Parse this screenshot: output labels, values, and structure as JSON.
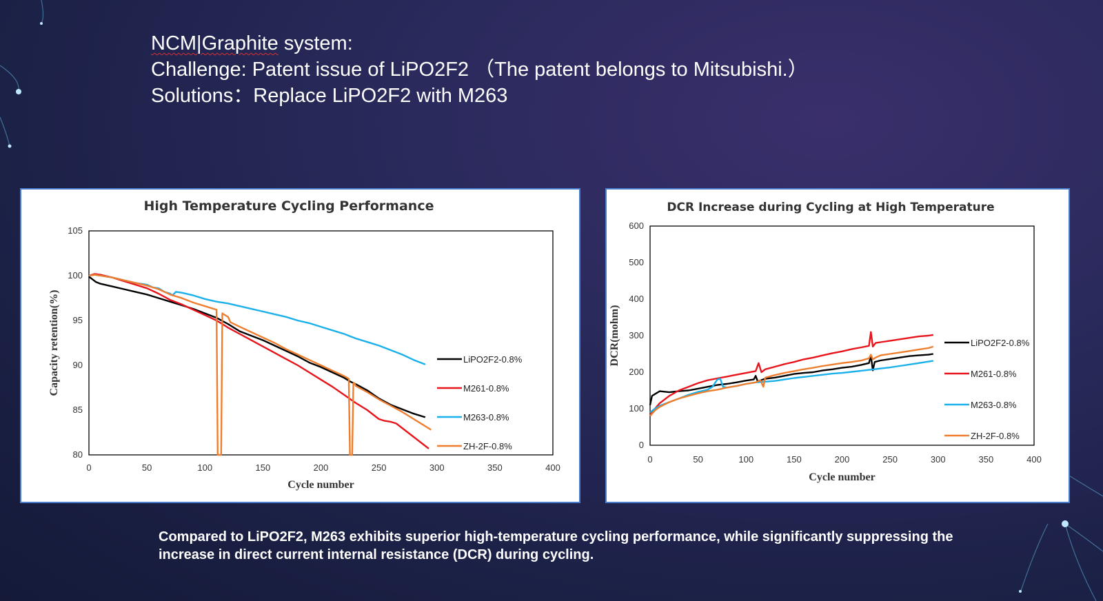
{
  "heading": {
    "line1_a": "NCM|Graphite",
    "line1_b": " system:",
    "line2": "Challenge: Patent issue of LiPO2F2 （The patent belongs to Mitsubishi.）",
    "line3": "Solutions：Replace LiPO2F2 with M263"
  },
  "caption": {
    "text": "Compared to LiPO2F2, M263 exhibits superior high-temperature cycling performance, while significantly suppressing the increase in direct current internal resistance (DCR) during cycling."
  },
  "colors": {
    "LiPO2F2-0.8%": "#000000",
    "M261-0.8%": "#e8141b",
    "M263-0.8%": "#1ab0ea",
    "ZH-2F-0.8%": "#ee7e2e",
    "panel_border": "#4a7fd0"
  },
  "chart_data": [
    {
      "type": "line",
      "title": "High Temperature Cycling Performance",
      "xlabel": "Cycle number",
      "ylabel": "Capacity retention(%)",
      "xlim": [
        0,
        400
      ],
      "ylim": [
        80,
        105
      ],
      "xticks": [
        0,
        50,
        100,
        150,
        200,
        250,
        300,
        350,
        400
      ],
      "yticks": [
        80,
        85,
        90,
        95,
        100,
        105
      ],
      "grid": false,
      "legend_position": "right",
      "series": [
        {
          "name": "LiPO2F2-0.8%",
          "x": [
            0,
            3,
            6,
            10,
            20,
            30,
            40,
            50,
            60,
            70,
            80,
            90,
            100,
            110,
            120,
            130,
            140,
            150,
            160,
            170,
            180,
            190,
            200,
            210,
            220,
            225,
            230,
            240,
            250,
            260,
            270,
            280,
            290
          ],
          "y": [
            99.9,
            99.6,
            99.3,
            99.1,
            98.8,
            98.5,
            98.2,
            97.9,
            97.5,
            97.1,
            96.7,
            96.3,
            95.8,
            95.3,
            94.6,
            93.8,
            93.3,
            92.8,
            92.2,
            91.6,
            91.0,
            90.3,
            89.8,
            89.2,
            88.6,
            88.2,
            87.9,
            87.2,
            86.3,
            85.6,
            85.1,
            84.6,
            84.2
          ]
        },
        {
          "name": "M261-0.8%",
          "x": [
            0,
            5,
            10,
            20,
            30,
            40,
            50,
            60,
            70,
            80,
            90,
            100,
            110,
            120,
            130,
            140,
            150,
            160,
            170,
            180,
            190,
            200,
            210,
            220,
            230,
            240,
            250,
            255,
            260,
            265,
            270,
            280,
            290,
            293
          ],
          "y": [
            100.0,
            100.2,
            100.1,
            99.8,
            99.4,
            99.0,
            98.6,
            98.0,
            97.3,
            96.8,
            96.2,
            95.6,
            95.0,
            94.2,
            93.5,
            92.8,
            92.1,
            91.4,
            90.7,
            90.0,
            89.2,
            88.4,
            87.6,
            86.7,
            85.8,
            85.0,
            84.0,
            83.8,
            83.7,
            83.5,
            83.0,
            82.0,
            81.0,
            80.7
          ]
        },
        {
          "name": "M263-0.8%",
          "x": [
            0,
            5,
            10,
            20,
            30,
            40,
            50,
            55,
            60,
            65,
            70,
            72,
            75,
            80,
            90,
            100,
            110,
            120,
            130,
            140,
            150,
            160,
            170,
            180,
            190,
            200,
            210,
            220,
            230,
            240,
            250,
            260,
            270,
            280,
            290
          ],
          "y": [
            100.0,
            100.1,
            100.0,
            99.8,
            99.5,
            99.2,
            99.0,
            98.7,
            98.6,
            98.2,
            98.0,
            97.8,
            98.2,
            98.1,
            97.8,
            97.4,
            97.1,
            96.9,
            96.6,
            96.3,
            96.0,
            95.7,
            95.4,
            95.0,
            94.7,
            94.3,
            93.9,
            93.5,
            93.0,
            92.6,
            92.2,
            91.7,
            91.2,
            90.6,
            90.1
          ]
        },
        {
          "name": "ZH-2F-0.8%",
          "x": [
            0,
            5,
            10,
            20,
            30,
            40,
            50,
            60,
            70,
            80,
            90,
            100,
            110,
            111,
            112,
            113,
            114,
            115,
            116,
            120,
            122,
            130,
            140,
            150,
            160,
            170,
            180,
            190,
            200,
            210,
            220,
            224,
            225,
            226,
            227,
            228,
            229,
            230,
            240,
            250,
            260,
            270,
            280,
            290,
            295
          ],
          "y": [
            100.0,
            100.1,
            100.0,
            99.8,
            99.5,
            99.2,
            98.9,
            98.5,
            97.9,
            97.5,
            97.0,
            96.6,
            96.2,
            80.0,
            80.0,
            80.0,
            80.0,
            95.8,
            95.7,
            95.4,
            94.8,
            94.3,
            93.7,
            93.1,
            92.5,
            91.8,
            91.2,
            90.6,
            90.0,
            89.4,
            88.8,
            88.5,
            80.0,
            80.0,
            80.0,
            88.0,
            88.0,
            87.7,
            87.0,
            86.2,
            85.5,
            84.8,
            84.0,
            83.2,
            82.8
          ]
        }
      ]
    },
    {
      "type": "line",
      "title": "DCR Increase during Cycling at High Temperature",
      "xlabel": "Cycle number",
      "ylabel": "DCR(mohm)",
      "xlim": [
        0,
        400
      ],
      "ylim": [
        0,
        600
      ],
      "xticks": [
        0,
        50,
        100,
        150,
        200,
        250,
        300,
        350,
        400
      ],
      "yticks": [
        0,
        100,
        200,
        300,
        400,
        500,
        600
      ],
      "grid": false,
      "legend_position": "right",
      "series": [
        {
          "name": "LiPO2F2-0.8%",
          "x": [
            0,
            2,
            5,
            10,
            20,
            30,
            40,
            50,
            60,
            70,
            80,
            90,
            100,
            108,
            110,
            112,
            120,
            130,
            140,
            150,
            160,
            170,
            180,
            190,
            200,
            210,
            220,
            228,
            230,
            232,
            234,
            240,
            250,
            260,
            270,
            280,
            290,
            295
          ],
          "y": [
            110,
            135,
            140,
            148,
            145,
            148,
            150,
            155,
            160,
            165,
            168,
            172,
            177,
            180,
            190,
            175,
            182,
            185,
            190,
            195,
            198,
            200,
            205,
            208,
            212,
            215,
            220,
            225,
            245,
            205,
            228,
            232,
            236,
            240,
            244,
            246,
            248,
            250
          ]
        },
        {
          "name": "M261-0.8%",
          "x": [
            0,
            5,
            10,
            20,
            30,
            40,
            50,
            60,
            70,
            80,
            90,
            100,
            110,
            113,
            116,
            120,
            130,
            140,
            150,
            160,
            170,
            180,
            190,
            200,
            210,
            220,
            228,
            230,
            232,
            235,
            240,
            250,
            260,
            270,
            280,
            290,
            295
          ],
          "y": [
            85,
            100,
            115,
            135,
            150,
            160,
            170,
            178,
            183,
            188,
            193,
            198,
            203,
            225,
            200,
            208,
            215,
            222,
            228,
            235,
            240,
            246,
            252,
            257,
            263,
            268,
            272,
            310,
            270,
            280,
            282,
            286,
            290,
            294,
            298,
            300,
            302
          ]
        },
        {
          "name": "M263-0.8%",
          "x": [
            0,
            5,
            10,
            20,
            30,
            40,
            50,
            60,
            65,
            70,
            73,
            76,
            80,
            90,
            100,
            110,
            120,
            130,
            140,
            150,
            160,
            170,
            180,
            190,
            200,
            210,
            220,
            230,
            240,
            250,
            260,
            270,
            280,
            290,
            295
          ],
          "y": [
            90,
            100,
            108,
            118,
            128,
            138,
            146,
            152,
            160,
            180,
            182,
            160,
            158,
            162,
            168,
            172,
            174,
            176,
            180,
            184,
            187,
            190,
            193,
            196,
            198,
            201,
            204,
            207,
            210,
            213,
            217,
            221,
            225,
            229,
            231
          ]
        },
        {
          "name": "ZH-2F-0.8%",
          "x": [
            0,
            5,
            10,
            20,
            30,
            40,
            50,
            60,
            70,
            80,
            90,
            100,
            110,
            115,
            118,
            120,
            130,
            140,
            150,
            160,
            170,
            180,
            190,
            200,
            210,
            220,
            228,
            230,
            232,
            235,
            240,
            250,
            260,
            270,
            280,
            290,
            295
          ],
          "y": [
            80,
            95,
            105,
            118,
            128,
            135,
            142,
            148,
            152,
            158,
            162,
            168,
            172,
            178,
            160,
            185,
            192,
            198,
            203,
            208,
            212,
            217,
            221,
            225,
            228,
            232,
            238,
            248,
            235,
            240,
            246,
            250,
            254,
            258,
            262,
            266,
            270
          ]
        }
      ]
    }
  ]
}
